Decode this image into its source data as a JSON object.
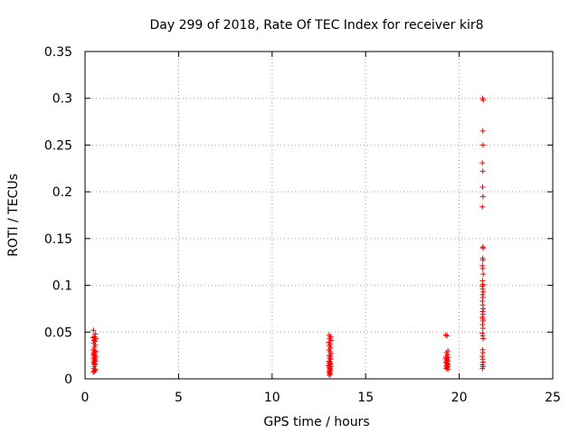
{
  "chart_data": {
    "type": "scatter",
    "title": "Day 299 of 2018, Rate Of TEC Index for receiver kir8",
    "xlabel": "GPS time / hours",
    "ylabel": "ROTI / TECUs",
    "xlim": [
      0,
      25
    ],
    "ylim": [
      0,
      0.35
    ],
    "x_ticks": [
      "0",
      "5",
      "10",
      "15",
      "20",
      "25"
    ],
    "x_tick_values": [
      0,
      5,
      10,
      15,
      20,
      25
    ],
    "y_ticks": [
      "0",
      "0.05",
      "0.1",
      "0.15",
      "0.2",
      "0.25",
      "0.3",
      "0.35"
    ],
    "y_tick_values": [
      0,
      0.05,
      0.1,
      0.15,
      0.2,
      0.25,
      0.3,
      0.35
    ],
    "grid": true,
    "marker": "+",
    "color": "#ff0000",
    "series": [
      {
        "points": [
          [
            0.45,
            0.052
          ],
          [
            0.55,
            0.048
          ],
          [
            0.5,
            0.045
          ],
          [
            0.42,
            0.044
          ],
          [
            0.58,
            0.043
          ],
          [
            0.48,
            0.041
          ],
          [
            0.53,
            0.04
          ],
          [
            0.46,
            0.038
          ],
          [
            0.56,
            0.036
          ],
          [
            0.5,
            0.034
          ],
          [
            0.44,
            0.031
          ],
          [
            0.52,
            0.03
          ],
          [
            0.57,
            0.029
          ],
          [
            0.47,
            0.028
          ],
          [
            0.51,
            0.027
          ],
          [
            0.43,
            0.026
          ],
          [
            0.55,
            0.025
          ],
          [
            0.49,
            0.024
          ],
          [
            0.58,
            0.023
          ],
          [
            0.45,
            0.022
          ],
          [
            0.53,
            0.021
          ],
          [
            0.5,
            0.02
          ],
          [
            0.56,
            0.019
          ],
          [
            0.46,
            0.018
          ],
          [
            0.52,
            0.017
          ],
          [
            0.48,
            0.016
          ],
          [
            0.54,
            0.015
          ],
          [
            0.5,
            0.013
          ],
          [
            0.47,
            0.011
          ],
          [
            0.55,
            0.01
          ],
          [
            0.52,
            0.009
          ],
          [
            0.49,
            0.008
          ],
          [
            0.45,
            0.007
          ],
          [
            13.05,
            0.047
          ],
          [
            13.12,
            0.045
          ],
          [
            13.08,
            0.043
          ],
          [
            13.15,
            0.041
          ],
          [
            13.02,
            0.039
          ],
          [
            13.1,
            0.037
          ],
          [
            13.06,
            0.035
          ],
          [
            13.13,
            0.033
          ],
          [
            13.03,
            0.031
          ],
          [
            13.09,
            0.029
          ],
          [
            13.16,
            0.027
          ],
          [
            13.05,
            0.025
          ],
          [
            13.11,
            0.024
          ],
          [
            13.07,
            0.022
          ],
          [
            13.14,
            0.021
          ],
          [
            13.04,
            0.019
          ],
          [
            13.1,
            0.018
          ],
          [
            13.06,
            0.017
          ],
          [
            13.12,
            0.016
          ],
          [
            13.08,
            0.015
          ],
          [
            13.02,
            0.014
          ],
          [
            13.15,
            0.013
          ],
          [
            13.05,
            0.012
          ],
          [
            13.1,
            0.011
          ],
          [
            13.07,
            0.01
          ],
          [
            13.13,
            0.009
          ],
          [
            13.04,
            0.008
          ],
          [
            13.09,
            0.007
          ],
          [
            13.06,
            0.006
          ],
          [
            13.11,
            0.005
          ],
          [
            13.05,
            0.004
          ],
          [
            19.28,
            0.047
          ],
          [
            19.35,
            0.046
          ],
          [
            19.4,
            0.03
          ],
          [
            19.32,
            0.028
          ],
          [
            19.38,
            0.026
          ],
          [
            19.3,
            0.024
          ],
          [
            19.42,
            0.023
          ],
          [
            19.27,
            0.022
          ],
          [
            19.36,
            0.021
          ],
          [
            19.33,
            0.02
          ],
          [
            19.4,
            0.019
          ],
          [
            19.29,
            0.018
          ],
          [
            19.37,
            0.017
          ],
          [
            19.34,
            0.016
          ],
          [
            19.41,
            0.015
          ],
          [
            19.31,
            0.014
          ],
          [
            19.38,
            0.013
          ],
          [
            19.35,
            0.012
          ],
          [
            19.3,
            0.011
          ],
          [
            19.4,
            0.01
          ],
          [
            21.25,
            0.3
          ],
          [
            21.28,
            0.298
          ],
          [
            21.26,
            0.265
          ],
          [
            21.27,
            0.25
          ],
          [
            21.24,
            0.231
          ],
          [
            21.26,
            0.222
          ],
          [
            21.25,
            0.205
          ],
          [
            21.27,
            0.195
          ],
          [
            21.24,
            0.184
          ],
          [
            21.26,
            0.141
          ],
          [
            21.28,
            0.14
          ],
          [
            21.25,
            0.129
          ],
          [
            21.27,
            0.127
          ],
          [
            21.24,
            0.121
          ],
          [
            21.26,
            0.118
          ],
          [
            21.28,
            0.112
          ],
          [
            21.25,
            0.105
          ],
          [
            21.27,
            0.101
          ],
          [
            21.24,
            0.099
          ],
          [
            21.26,
            0.096
          ],
          [
            21.28,
            0.093
          ],
          [
            21.25,
            0.09
          ],
          [
            21.27,
            0.087
          ],
          [
            21.24,
            0.083
          ],
          [
            21.26,
            0.079
          ],
          [
            21.28,
            0.075
          ],
          [
            21.25,
            0.072
          ],
          [
            21.27,
            0.069
          ],
          [
            21.24,
            0.066
          ],
          [
            21.26,
            0.064
          ],
          [
            21.28,
            0.062
          ],
          [
            21.25,
            0.058
          ],
          [
            21.27,
            0.054
          ],
          [
            21.24,
            0.049
          ],
          [
            21.26,
            0.046
          ],
          [
            21.28,
            0.043
          ],
          [
            21.25,
            0.031
          ],
          [
            21.27,
            0.028
          ],
          [
            21.24,
            0.024
          ],
          [
            21.26,
            0.021
          ],
          [
            21.28,
            0.018
          ],
          [
            21.25,
            0.015
          ],
          [
            21.27,
            0.013
          ],
          [
            21.24,
            0.011
          ]
        ]
      }
    ]
  }
}
